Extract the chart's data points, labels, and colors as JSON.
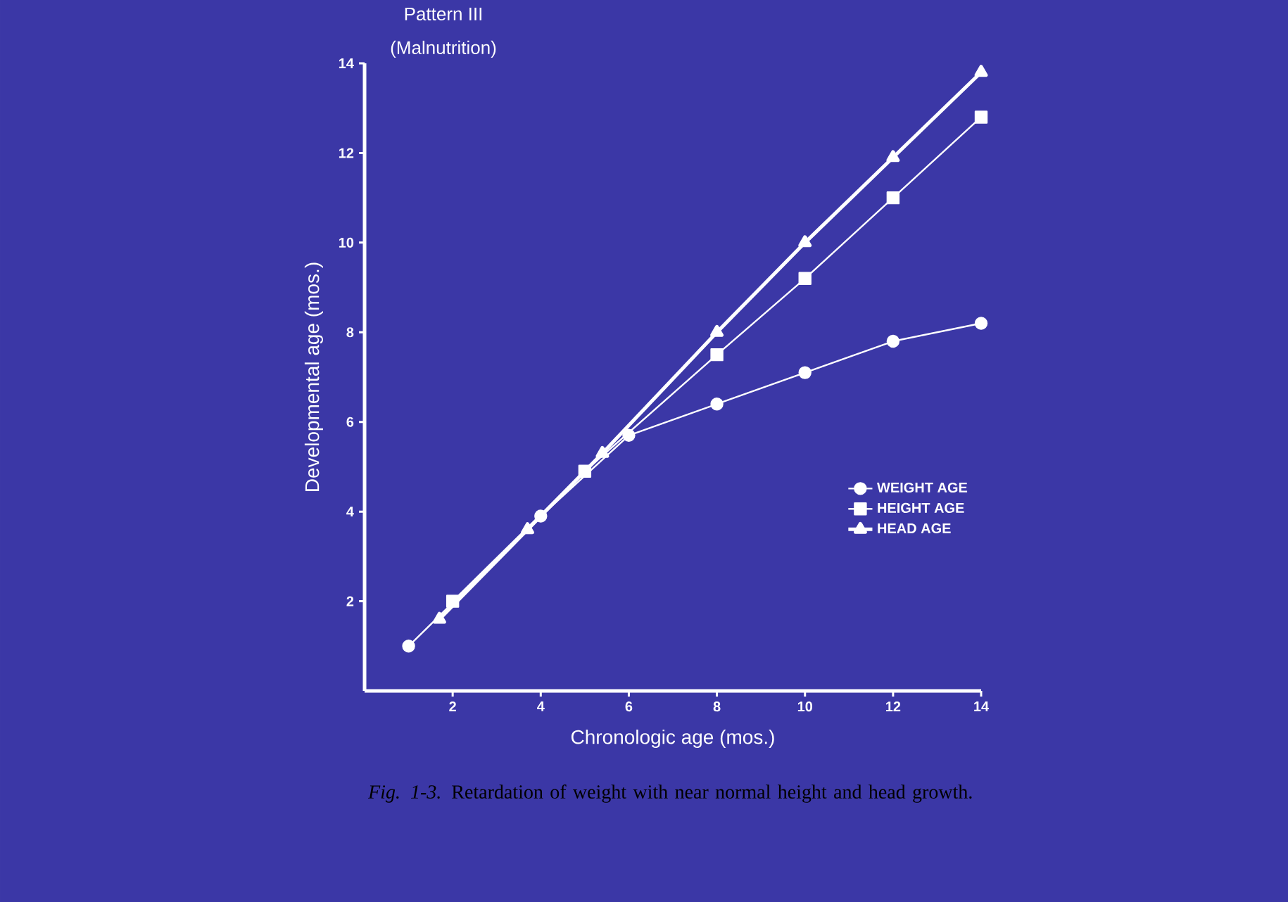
{
  "chart_data": {
    "type": "line",
    "title": "Pattern III",
    "subtitle": "(Malnutrition)",
    "xlabel": "Chronologic age (mos.)",
    "ylabel": "Developmental age (mos.)",
    "annotations": [
      "*Fig. 1-3.* Retardation of weight with near normal height and head growth."
    ],
    "xlim": [
      0,
      14
    ],
    "ylim": [
      0,
      14
    ],
    "xticks": [
      2,
      4,
      6,
      8,
      10,
      12,
      14
    ],
    "yticks": [
      2,
      4,
      6,
      8,
      10,
      12,
      14
    ],
    "grid": false,
    "legend": "right",
    "line_style": "solid",
    "series": [
      {
        "name": "WEIGHT AGE",
        "color": "#ffffff",
        "marker": "circle",
        "x": [
          1,
          4,
          6,
          8,
          10,
          12,
          14
        ],
        "values": [
          1.0,
          3.9,
          5.7,
          6.4,
          7.1,
          7.8,
          8.2
        ]
      },
      {
        "name": "HEIGHT AGE",
        "color": "#ffffff",
        "marker": "square",
        "x": [
          2,
          5,
          8,
          10,
          12,
          14
        ],
        "values": [
          2.0,
          4.9,
          7.5,
          9.2,
          11.0,
          12.8
        ]
      },
      {
        "name": "HEAD AGE",
        "color": "#ffffff",
        "marker": "triangle",
        "x": [
          1.7,
          3.7,
          5.4,
          8,
          10,
          12,
          14
        ],
        "values": [
          1.6,
          3.6,
          5.3,
          8.0,
          10.0,
          11.9,
          13.8
        ]
      }
    ]
  }
}
